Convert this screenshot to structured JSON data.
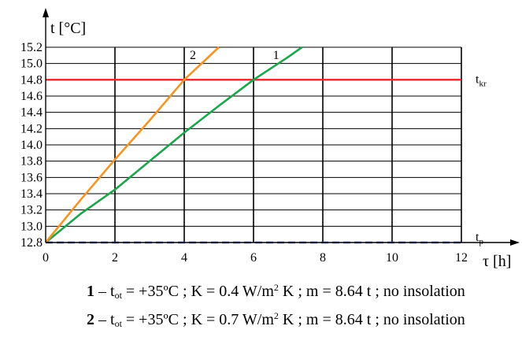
{
  "chart_data": {
    "type": "line",
    "x_axis": {
      "label": "τ [h]",
      "label_main": "τ",
      "label_unit": "[h]",
      "min": 0,
      "max": 12,
      "ticks": [
        0,
        2,
        4,
        6,
        8,
        10,
        12
      ]
    },
    "y_axis": {
      "label": "t [°C]",
      "label_main": "t",
      "label_unit": "[°C]",
      "min": 12.8,
      "max": 15.2,
      "ticks": [
        12.8,
        13.0,
        13.2,
        13.4,
        13.6,
        13.8,
        14.0,
        14.2,
        14.4,
        14.6,
        14.8,
        15.0,
        15.2
      ]
    },
    "grid": {
      "major_x": true,
      "horizontal": true
    },
    "series": [
      {
        "name": "1",
        "color": "#1aa64a",
        "x": [
          0,
          1,
          2,
          3,
          4,
          5,
          6,
          7,
          7.4
        ],
        "y": [
          12.8,
          13.15,
          13.45,
          13.8,
          14.15,
          14.48,
          14.8,
          15.08,
          15.2
        ]
      },
      {
        "name": "2",
        "color": "#f7941d",
        "x": [
          0,
          1,
          2,
          3,
          4,
          5
        ],
        "y": [
          12.8,
          13.32,
          13.82,
          14.3,
          14.8,
          15.2
        ]
      }
    ],
    "reference_lines": [
      {
        "label_main": "t",
        "label_sub": "kr",
        "value": 14.8,
        "color": "#e8262b",
        "style": "solid"
      },
      {
        "label_main": "t",
        "label_sub": "p",
        "value": 12.8,
        "color": "#3a49b5",
        "style": "dashed"
      }
    ],
    "legend": [
      {
        "num": "1",
        "text": " – t",
        "sub": "ot",
        "text2": " = +35ºC ; K = 0.4 W/m",
        "sup": "2",
        "text3": " K ; m = 8.64 t ; no insolation"
      },
      {
        "num": "2",
        "text": " – t",
        "sub": "ot",
        "text2": " = +35ºC ; K = 0.7 W/m",
        "sup": "2",
        "text3": " K ; m = 8.64 t ; no insolation"
      }
    ]
  }
}
